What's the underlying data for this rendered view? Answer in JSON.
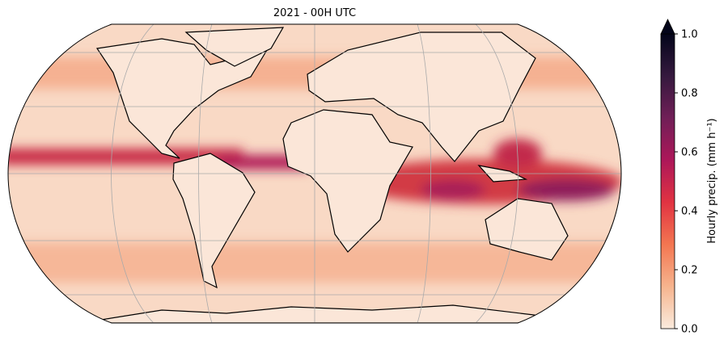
{
  "map": {
    "title": "2021 - 00H UTC",
    "colorbar": {
      "label": "Hourly precip. (mm h⁻¹)",
      "range": [
        0,
        1
      ],
      "ticks": [
        {
          "value": 0,
          "label": "0.0"
        },
        0.2,
        0.4,
        0.6,
        0.8,
        {
          "value": 1,
          "label": "1.0"
        }
      ],
      "colors": [
        "#faebdd",
        "#f6b48e",
        "#f37651",
        "#e13342",
        "#ad1759",
        "#701f57",
        "#35193e",
        "#03051a"
      ]
    }
  }
}
